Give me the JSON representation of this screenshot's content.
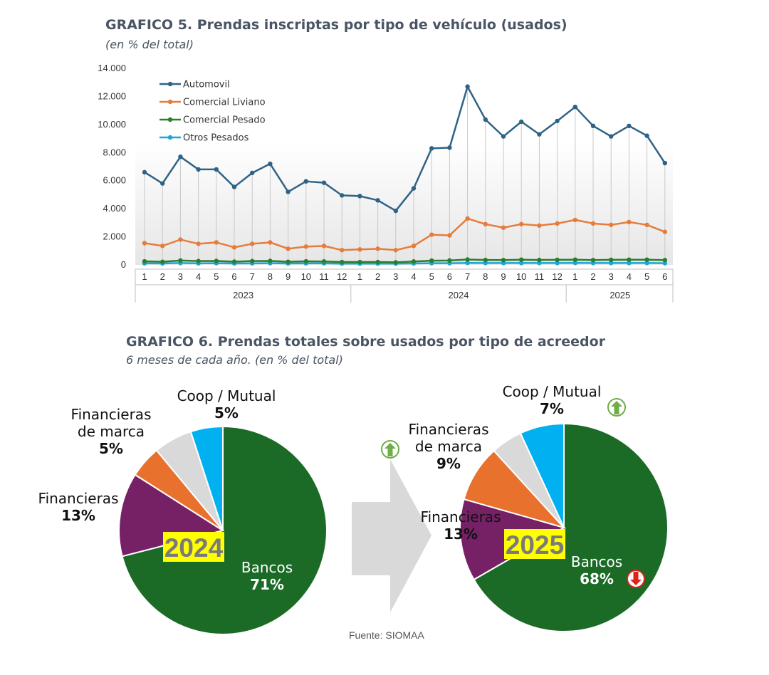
{
  "chart5": {
    "title": "GRAFICO 5. Prendas inscriptas por tipo de vehículo (usados)",
    "subtitle": "(en % del total)"
  },
  "chart6": {
    "title": "GRAFICO 6. Prendas totales sobre usados por tipo de acreedor",
    "subtitle": "6 meses de cada año. (en % del total)"
  },
  "source": "Fuente: SIOMAA",
  "colors": {
    "automovil": "#2e6386",
    "comercial_liviano": "#e67c3c",
    "comercial_pesado": "#2c7d2c",
    "otros_pesados": "#1aa7d8",
    "bancos": "#1b6b27",
    "financieras": "#762066",
    "financieras_marca": "#e8712e",
    "otros": "#d9d9d9",
    "coop_mutual": "#00b0f0",
    "year_badge": "#ffff00",
    "year_text": "#7a7a7a",
    "arrow_up": "#70ad47",
    "arrow_down": "#e0201b"
  },
  "chart_data": [
    {
      "type": "line",
      "y_ticks": [
        "14.000",
        "12.000",
        "10.000",
        "8.000",
        "6.000",
        "4.000",
        "2.000",
        "0"
      ],
      "ylim": [
        0,
        14000
      ],
      "grid": false,
      "legend_position": "top-left",
      "categories": [
        "1",
        "2",
        "3",
        "4",
        "5",
        "6",
        "7",
        "8",
        "9",
        "10",
        "11",
        "12",
        "1",
        "2",
        "3",
        "4",
        "5",
        "6",
        "7",
        "8",
        "9",
        "10",
        "11",
        "12",
        "1",
        "2",
        "3",
        "4",
        "5",
        "6"
      ],
      "groups": [
        {
          "label": "2023",
          "count": 12
        },
        {
          "label": "2024",
          "count": 12
        },
        {
          "label": "2025",
          "count": 6
        }
      ],
      "series": [
        {
          "name": "Automovil",
          "color": "#2e6386",
          "values": [
            6550,
            5750,
            7650,
            6750,
            6750,
            5500,
            6500,
            7150,
            5150,
            5900,
            5800,
            4900,
            4850,
            4550,
            3800,
            5400,
            8250,
            8300,
            12650,
            10300,
            9100,
            10150,
            9250,
            10200,
            11200,
            9850,
            9100,
            9850,
            9150,
            7200
          ]
        },
        {
          "name": "Comercial Liviano",
          "color": "#e67c3c",
          "values": [
            1500,
            1300,
            1750,
            1450,
            1550,
            1200,
            1450,
            1550,
            1100,
            1250,
            1300,
            1000,
            1050,
            1100,
            1000,
            1300,
            2100,
            2050,
            3250,
            2850,
            2600,
            2850,
            2750,
            2900,
            3150,
            2900,
            2800,
            3000,
            2800,
            2300
          ]
        },
        {
          "name": "Comercial Pesado",
          "color": "#2c7d2c",
          "values": [
            200,
            170,
            260,
            220,
            230,
            180,
            220,
            230,
            170,
            200,
            190,
            150,
            150,
            150,
            130,
            190,
            250,
            260,
            330,
            300,
            290,
            320,
            300,
            310,
            320,
            290,
            310,
            320,
            320,
            290
          ]
        },
        {
          "name": "Otros Pesados",
          "color": "#1aa7d8",
          "values": [
            60,
            50,
            80,
            60,
            70,
            50,
            60,
            70,
            50,
            60,
            60,
            40,
            40,
            40,
            40,
            50,
            70,
            70,
            90,
            80,
            80,
            80,
            80,
            80,
            90,
            80,
            80,
            80,
            80,
            70
          ]
        }
      ]
    },
    {
      "type": "pie",
      "year": "2024",
      "slices": [
        {
          "name": "Bancos",
          "value": 71,
          "label": "71%",
          "color": "#1b6b27"
        },
        {
          "name": "Financieras",
          "value": 13,
          "label": "13%",
          "color": "#762066"
        },
        {
          "name": "Financieras de marca",
          "lines": [
            "Financieras",
            "de marca"
          ],
          "value": 5,
          "label": "5%",
          "color": "#e8712e"
        },
        {
          "name": "",
          "value": 6,
          "label": "",
          "color": "#d9d9d9"
        },
        {
          "name": "Coop / Mutual",
          "value": 5,
          "label": "5%",
          "color": "#00b0f0"
        }
      ]
    },
    {
      "type": "pie",
      "year": "2025",
      "slices": [
        {
          "name": "Bancos",
          "value": 68,
          "label": "68%",
          "color": "#1b6b27",
          "trend": "down"
        },
        {
          "name": "Financieras",
          "value": 13,
          "label": "13%",
          "color": "#762066"
        },
        {
          "name": "Financieras de marca",
          "lines": [
            "Financieras",
            "de marca"
          ],
          "value": 9,
          "label": "9%",
          "color": "#e8712e",
          "trend": "up"
        },
        {
          "name": "",
          "value": 5,
          "label": "",
          "color": "#d9d9d9"
        },
        {
          "name": "Coop / Mutual",
          "value": 7,
          "label": "7%",
          "color": "#00b0f0",
          "trend": "up"
        }
      ]
    }
  ]
}
